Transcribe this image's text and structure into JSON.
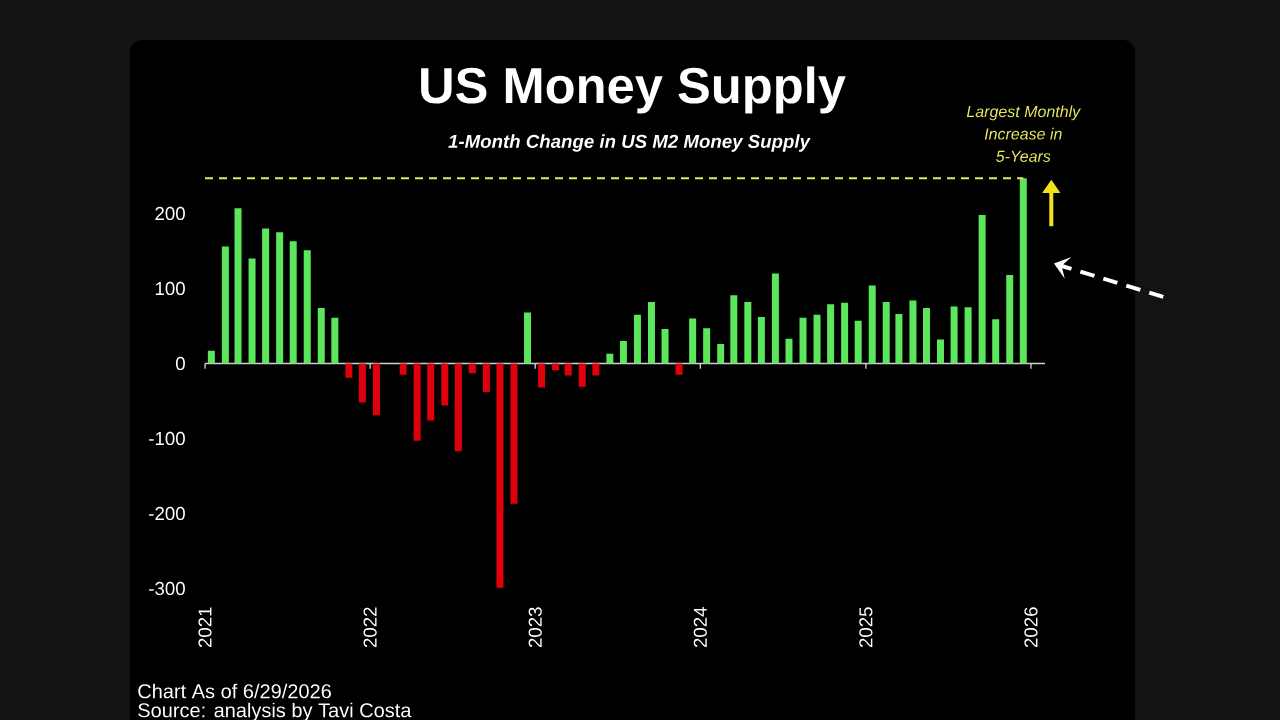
{
  "chart_data": {
    "type": "bar",
    "title": "US Money Supply",
    "subtitle": "1-Month Change in US M2 Money Supply",
    "x": [
      "2021-01-15",
      "2021-02-15",
      "2021-03-15",
      "2021-04-15",
      "2021-05-15",
      "2021-06-15",
      "2021-07-15",
      "2021-08-15",
      "2021-09-15",
      "2021-10-15",
      "2021-11-15",
      "2021-12-15",
      "2022-01-15",
      "2022-02-15",
      "2022-03-15",
      "2022-04-15",
      "2022-05-15",
      "2022-06-15",
      "2022-07-15",
      "2022-08-15",
      "2022-09-15",
      "2022-10-15",
      "2022-11-15",
      "2022-12-15",
      "2023-01-15",
      "2023-02-15",
      "2023-03-15",
      "2023-04-15",
      "2023-05-15",
      "2023-06-15",
      "2023-07-15",
      "2023-08-15",
      "2023-09-15",
      "2023-10-15",
      "2023-11-15",
      "2023-12-15",
      "2024-01-15",
      "2024-02-15",
      "2024-03-15",
      "2024-04-15",
      "2024-05-15",
      "2024-06-15",
      "2024-07-15",
      "2024-08-15",
      "2024-09-15",
      "2024-10-15",
      "2024-11-15",
      "2024-12-15",
      "2025-01-15",
      "2025-02-15",
      "2025-03-15",
      "2025-04-15",
      "2025-05-15",
      "2025-06-15",
      "2025-07-15",
      "2025-08-15",
      "2025-09-15",
      "2025-10-15",
      "2025-11-15",
      "2025-12-15"
    ],
    "values": [
      17,
      156,
      207,
      140,
      180,
      175,
      163,
      151,
      74,
      61,
      -19,
      -52,
      -69,
      null,
      -15,
      -103,
      -76,
      -56,
      -117,
      -13,
      -38,
      -299,
      -187,
      68,
      -32,
      -9,
      -16,
      -31,
      -16,
      13,
      30,
      65,
      82,
      46,
      -15,
      60,
      47,
      26,
      91,
      82,
      62,
      120,
      33,
      61,
      65,
      79,
      81,
      57,
      104,
      82,
      66,
      84,
      74,
      32,
      76,
      75,
      198,
      59,
      118,
      247
    ],
    "colors": [
      "#5ce65c",
      "#5ce65c",
      "#5ce65c",
      "#5ce65c",
      "#5ce65c",
      "#5ce65c",
      "#5ce65c",
      "#5ce65c",
      "#5ce65c",
      "#5ce65c",
      "#e0000b",
      "#e0000b",
      "#e0000b",
      null,
      "#e0000b",
      "#e0000b",
      "#e0000b",
      "#e0000b",
      "#e0000b",
      "#e0000b",
      "#e0000b",
      "#e0000b",
      "#e0000b",
      "#5ce65c",
      "#e0000b",
      "#e0000b",
      "#e0000b",
      "#e0000b",
      "#e0000b",
      "#5ce65c",
      "#5ce65c",
      "#5ce65c",
      "#5ce65c",
      "#5ce65c",
      "#e0000b",
      "#5ce65c",
      "#5ce65c",
      "#5ce65c",
      "#5ce65c",
      "#5ce65c",
      "#5ce65c",
      "#5ce65c",
      "#5ce65c",
      "#5ce65c",
      "#5ce65c",
      "#5ce65c",
      "#5ce65c",
      "#5ce65c",
      "#5ce65c",
      "#5ce65c",
      "#5ce65c",
      "#5ce65c",
      "#5ce65c",
      "#5ce65c",
      "#5ce65c",
      "#5ce65c",
      "#5ce65c",
      "#5ce65c",
      "#5ce65c",
      "#5ce65c"
    ],
    "xlim": [
      "2021-01-01",
      "2026-02-01"
    ],
    "ylim": [
      -300,
      250
    ],
    "xticks": [
      "2021",
      "2022",
      "2023",
      "2024",
      "2025",
      "2026"
    ],
    "yticks": [
      -300,
      -200,
      -100,
      0,
      100,
      200
    ],
    "ref_lines": [
      {
        "axis": "y",
        "value": 247,
        "label": "Largest Monthly Increase in 5-Years",
        "color": "#e8e860",
        "line_style": "dashed"
      }
    ],
    "annotations": [
      "Chart As of 6/29/2026",
      "Source: analysis by Tavi Costa"
    ]
  }
}
